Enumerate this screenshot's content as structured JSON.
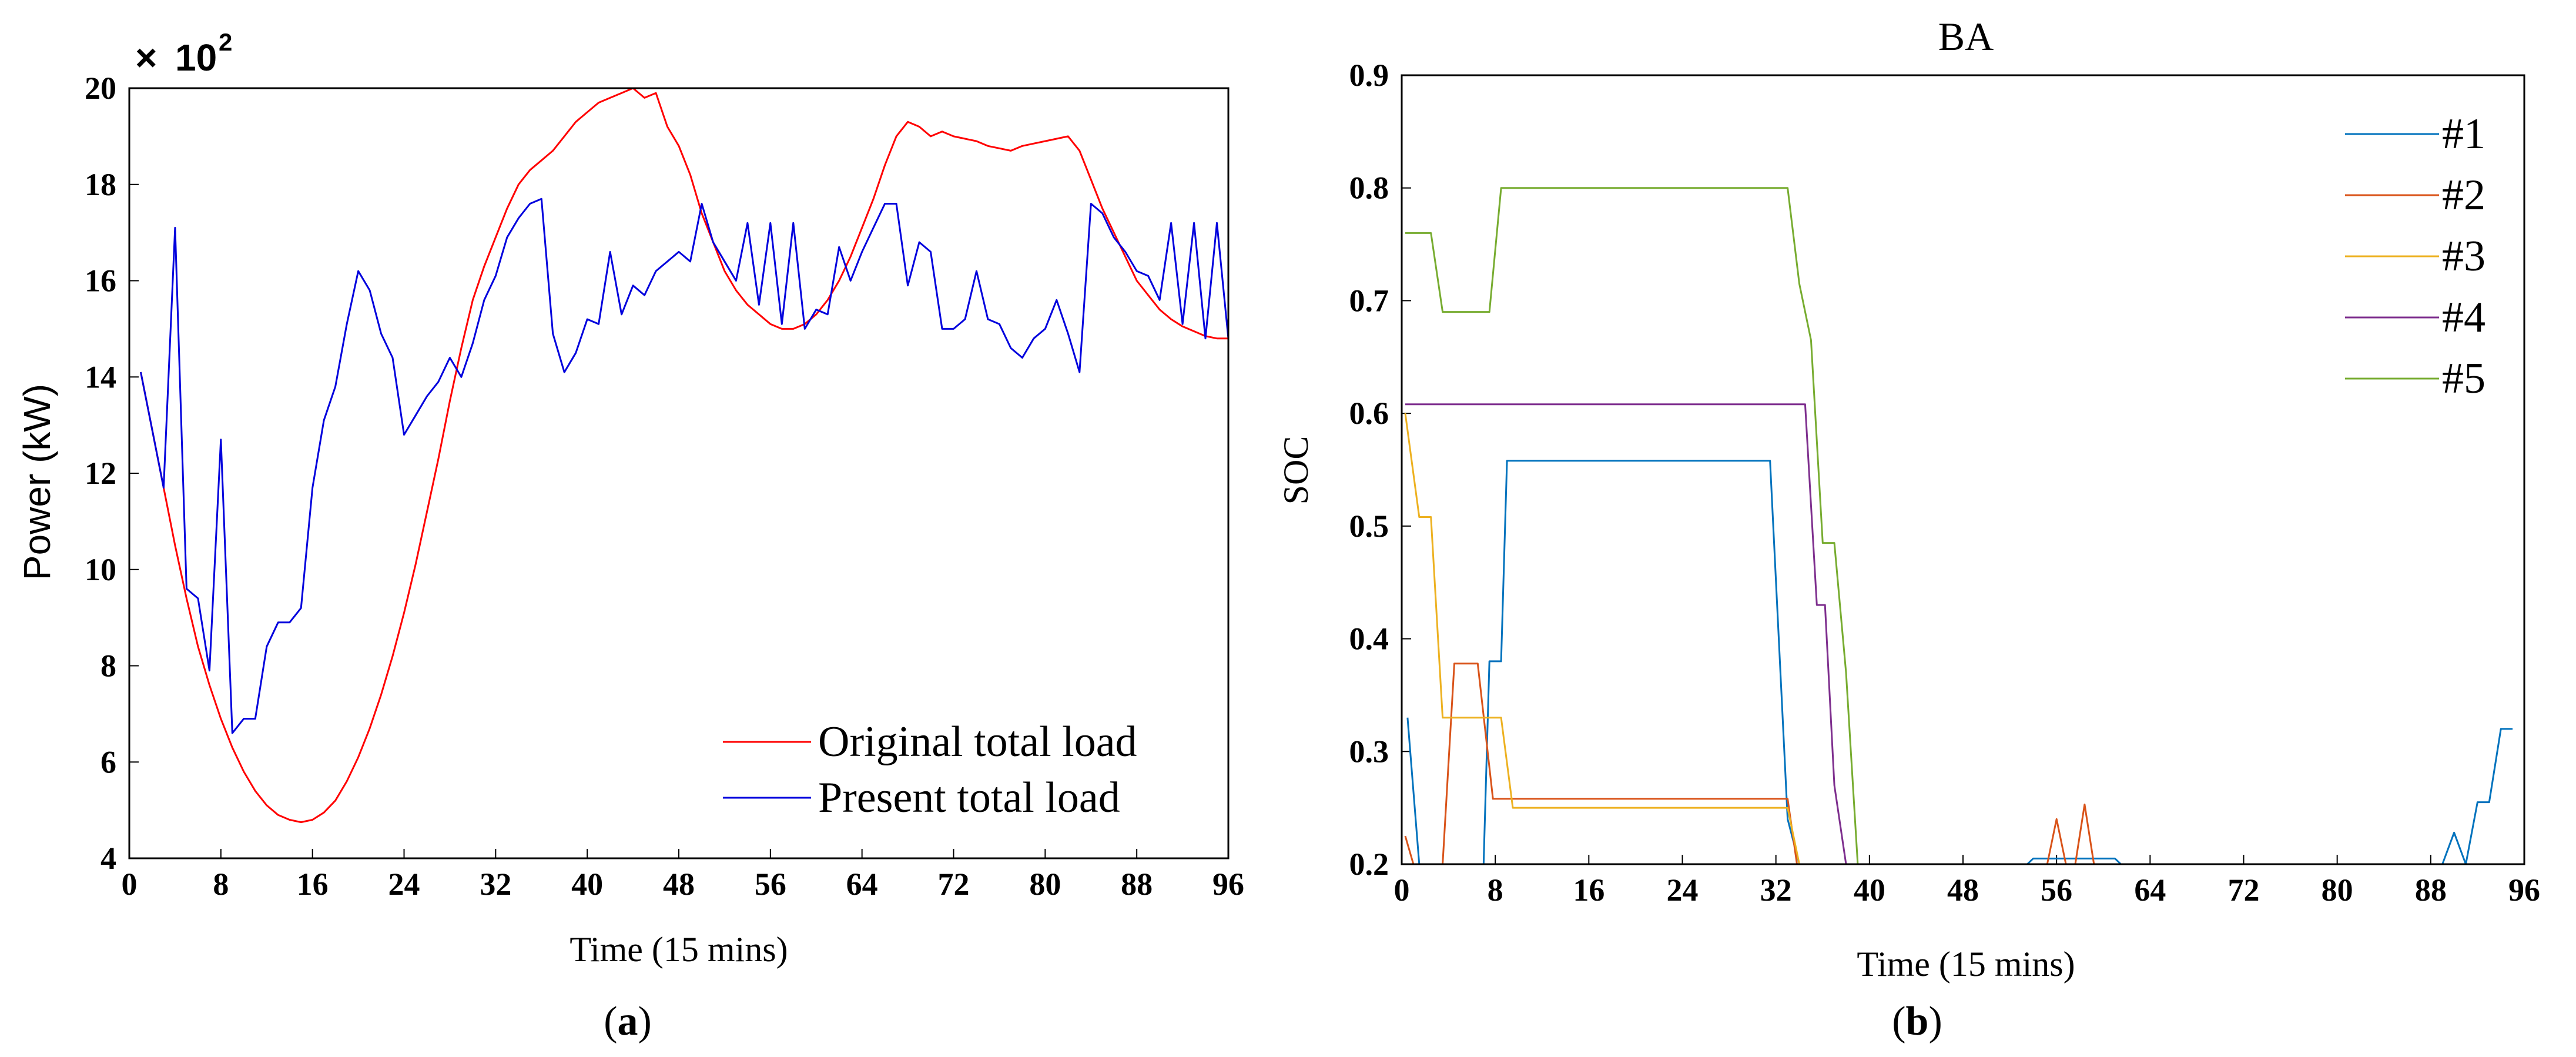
{
  "chart_data": [
    {
      "panel": "a",
      "type": "line",
      "title": "",
      "xlabel": "Time (15 mins)",
      "ylabel": "Power (kW)",
      "y_exponent_prefix": "×",
      "y_exponent_base": "10",
      "y_exponent_power": "2",
      "xlim": [
        0,
        96
      ],
      "ylim": [
        4,
        20
      ],
      "xticks": [
        0,
        8,
        16,
        24,
        32,
        40,
        48,
        56,
        64,
        72,
        80,
        88,
        96
      ],
      "yticks": [
        4,
        6,
        8,
        10,
        12,
        14,
        16,
        18,
        20
      ],
      "legend_position": "bottom-right",
      "series": [
        {
          "name": "Original total load",
          "color": "#ff0000",
          "x": [
            1,
            2,
            3,
            4,
            5,
            6,
            7,
            8,
            9,
            10,
            11,
            12,
            13,
            14,
            15,
            16,
            17,
            18,
            19,
            20,
            21,
            22,
            23,
            24,
            25,
            26,
            27,
            28,
            29,
            30,
            31,
            32,
            33,
            34,
            35,
            36,
            37,
            38,
            39,
            40,
            41,
            42,
            43,
            44,
            45,
            46,
            47,
            48,
            49,
            50,
            51,
            52,
            53,
            54,
            55,
            56,
            57,
            58,
            59,
            60,
            61,
            62,
            63,
            64,
            65,
            66,
            67,
            68,
            69,
            70,
            71,
            72,
            73,
            74,
            75,
            76,
            77,
            78,
            79,
            80,
            81,
            82,
            83,
            84,
            85,
            86,
            87,
            88,
            89,
            90,
            91,
            92,
            93,
            94,
            95,
            96
          ],
          "values": [
            14.1,
            12.9,
            11.7,
            10.5,
            9.4,
            8.4,
            7.6,
            6.9,
            6.3,
            5.8,
            5.4,
            5.1,
            4.9,
            4.8,
            4.75,
            4.8,
            4.95,
            5.2,
            5.6,
            6.1,
            6.7,
            7.4,
            8.2,
            9.1,
            10.1,
            11.2,
            12.3,
            13.5,
            14.6,
            15.6,
            16.3,
            16.9,
            17.5,
            18.0,
            18.3,
            18.5,
            18.7,
            19.0,
            19.3,
            19.5,
            19.7,
            19.8,
            19.9,
            20.0,
            19.8,
            19.9,
            19.2,
            18.8,
            18.2,
            17.4,
            16.8,
            16.2,
            15.8,
            15.5,
            15.3,
            15.1,
            15.0,
            15.0,
            15.1,
            15.3,
            15.6,
            16.0,
            16.5,
            17.1,
            17.7,
            18.4,
            19.0,
            19.3,
            19.2,
            19.0,
            19.1,
            19.0,
            18.95,
            18.9,
            18.8,
            18.75,
            18.7,
            18.8,
            18.85,
            18.9,
            18.95,
            19.0,
            18.7,
            18.1,
            17.5,
            17.0,
            16.5,
            16.0,
            15.7,
            15.4,
            15.2,
            15.05,
            14.95,
            14.85,
            14.8,
            14.8
          ]
        },
        {
          "name": "Present total load",
          "color": "#0000dd",
          "x": [
            1,
            2,
            3,
            4,
            5,
            6,
            7,
            8,
            9,
            10,
            11,
            12,
            13,
            14,
            15,
            16,
            17,
            18,
            19,
            20,
            21,
            22,
            23,
            24,
            25,
            26,
            27,
            28,
            29,
            30,
            31,
            32,
            33,
            34,
            35,
            36,
            37,
            38,
            39,
            40,
            41,
            42,
            43,
            44,
            45,
            46,
            47,
            48,
            49,
            50,
            51,
            52,
            53,
            54,
            55,
            56,
            57,
            58,
            59,
            60,
            61,
            62,
            63,
            64,
            65,
            66,
            67,
            68,
            69,
            70,
            71,
            72,
            73,
            74,
            75,
            76,
            77,
            78,
            79,
            80,
            81,
            82,
            83,
            84,
            85,
            86,
            87,
            88,
            89,
            90,
            91,
            92,
            93,
            94,
            95,
            96
          ],
          "values": [
            14.1,
            12.9,
            11.7,
            17.1,
            9.6,
            9.4,
            7.9,
            12.7,
            6.6,
            6.9,
            6.9,
            8.4,
            8.9,
            8.9,
            9.2,
            11.7,
            13.1,
            13.8,
            15.1,
            16.2,
            15.8,
            14.9,
            14.4,
            12.8,
            13.2,
            13.6,
            13.9,
            14.4,
            14.0,
            14.7,
            15.6,
            16.1,
            16.9,
            17.3,
            17.6,
            17.7,
            14.9,
            14.1,
            14.5,
            15.2,
            15.1,
            16.6,
            15.3,
            15.9,
            15.7,
            16.2,
            16.4,
            16.6,
            16.4,
            17.6,
            16.8,
            16.4,
            16.0,
            17.2,
            15.5,
            17.2,
            15.1,
            17.2,
            15.0,
            15.4,
            15.3,
            16.7,
            16.0,
            16.6,
            17.1,
            17.6,
            17.6,
            15.9,
            16.8,
            16.6,
            15.0,
            15.0,
            15.2,
            16.2,
            15.2,
            15.1,
            14.6,
            14.4,
            14.8,
            15.0,
            15.6,
            14.9,
            14.1,
            17.6,
            17.4,
            16.9,
            16.6,
            16.2,
            16.1,
            15.6,
            17.2,
            15.1,
            17.2,
            14.8,
            17.2,
            14.8
          ]
        }
      ]
    },
    {
      "panel": "b",
      "type": "line",
      "title": "BA",
      "xlabel": "Time (15 mins)",
      "ylabel": "SOC",
      "xlim": [
        0,
        96
      ],
      "ylim": [
        0.2,
        0.9
      ],
      "xticks": [
        0,
        8,
        16,
        24,
        32,
        40,
        48,
        56,
        64,
        72,
        80,
        88,
        96
      ],
      "yticks": [
        0.2,
        0.3,
        0.4,
        0.5,
        0.6,
        0.7,
        0.8,
        0.9
      ],
      "legend_position": "top-right",
      "series": [
        {
          "name": "#1",
          "color": "#0072bd",
          "points": [
            [
              0.5,
              0.33
            ],
            [
              1.5,
              0.2
            ],
            [
              7,
              0.2
            ],
            [
              7.5,
              0.38
            ],
            [
              8.5,
              0.38
            ],
            [
              9,
              0.558
            ],
            [
              31.5,
              0.558
            ],
            [
              33,
              0.24
            ],
            [
              34,
              0.2
            ],
            [
              53.5,
              0.2
            ],
            [
              54,
              0.205
            ],
            [
              61,
              0.205
            ],
            [
              61.5,
              0.2
            ],
            [
              89,
              0.2
            ],
            [
              90,
              0.228
            ],
            [
              91,
              0.2
            ],
            [
              92,
              0.255
            ],
            [
              93,
              0.255
            ],
            [
              94,
              0.32
            ],
            [
              95,
              0.32
            ]
          ]
        },
        {
          "name": "#2",
          "color": "#d95319",
          "points": [
            [
              0.3,
              0.225
            ],
            [
              1,
              0.2
            ],
            [
              3.5,
              0.2
            ],
            [
              4.5,
              0.378
            ],
            [
              6.5,
              0.378
            ],
            [
              7.8,
              0.258
            ],
            [
              33,
              0.258
            ],
            [
              33.8,
              0.2
            ],
            [
              55.2,
              0.2
            ],
            [
              56,
              0.24
            ],
            [
              56.8,
              0.2
            ],
            [
              57.6,
              0.2
            ],
            [
              58.4,
              0.253
            ],
            [
              59.2,
              0.2
            ],
            [
              95,
              0.2
            ]
          ]
        },
        {
          "name": "#3",
          "color": "#edb120",
          "points": [
            [
              0.3,
              0.6
            ],
            [
              1.5,
              0.508
            ],
            [
              2.5,
              0.508
            ],
            [
              3.5,
              0.33
            ],
            [
              8.5,
              0.33
            ],
            [
              9.5,
              0.25
            ],
            [
              33,
              0.25
            ],
            [
              34,
              0.2
            ],
            [
              95,
              0.2
            ]
          ]
        },
        {
          "name": "#4",
          "color": "#7e2f8e",
          "points": [
            [
              0.3,
              0.608
            ],
            [
              34.5,
              0.608
            ],
            [
              35.5,
              0.43
            ],
            [
              36.2,
              0.43
            ],
            [
              37,
              0.27
            ],
            [
              38,
              0.2
            ],
            [
              95,
              0.2
            ]
          ]
        },
        {
          "name": "#5",
          "color": "#77ac30",
          "points": [
            [
              0.3,
              0.76
            ],
            [
              2.5,
              0.76
            ],
            [
              3.5,
              0.69
            ],
            [
              7.5,
              0.69
            ],
            [
              8.5,
              0.8
            ],
            [
              33,
              0.8
            ],
            [
              34,
              0.715
            ],
            [
              35,
              0.665
            ],
            [
              36,
              0.485
            ],
            [
              37,
              0.485
            ],
            [
              38,
              0.37
            ],
            [
              39,
              0.2
            ],
            [
              95,
              0.2
            ]
          ]
        }
      ]
    }
  ],
  "panel_labels": {
    "a": "a",
    "b": "b"
  }
}
